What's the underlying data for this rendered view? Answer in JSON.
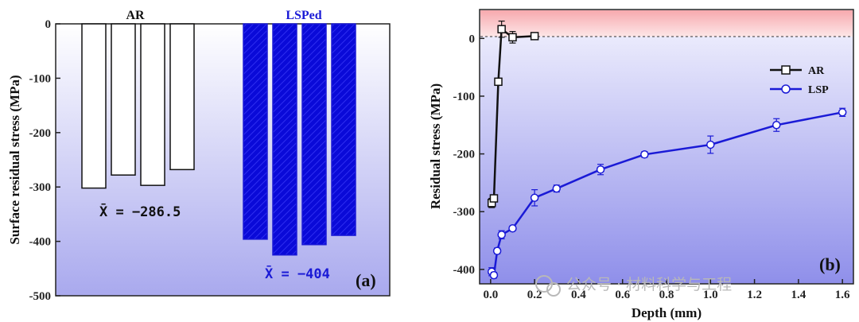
{
  "chart_data": [
    {
      "type": "bar",
      "panel_label": "(a)",
      "ylabel": "Surface residual stress (MPa)",
      "ylim": [
        -500,
        0
      ],
      "yticks": [
        0,
        -100,
        -200,
        -300,
        -400,
        -500
      ],
      "groups": [
        {
          "label": "AR",
          "color": "#111111",
          "fill": "#ffffff",
          "values": [
            -302,
            -278,
            -297,
            -268
          ],
          "mean_label": "X̄ = −286.5",
          "mean_color": "#111111"
        },
        {
          "label": "LSPed",
          "color": "#1a1ad6",
          "fill": "#0a0ad8",
          "values": [
            -396,
            -425,
            -406,
            -389
          ],
          "mean_label": "X̄ = −404",
          "mean_color": "#1a1ad6"
        }
      ]
    },
    {
      "type": "line",
      "panel_label": "(b)",
      "xlabel": "Depth (mm)",
      "ylabel": "Residual stress (MPa)",
      "xlim": [
        -0.05,
        1.65
      ],
      "ylim": [
        -425,
        50
      ],
      "xticks": [
        0.0,
        0.2,
        0.4,
        0.6,
        0.8,
        1.0,
        1.2,
        1.4,
        1.6
      ],
      "xtick_labels": [
        "0.0",
        "0.2",
        "0.4",
        "0.6",
        "0.8",
        "1.0",
        "1.2",
        "1.4",
        "1.6"
      ],
      "yticks": [
        0,
        -100,
        -200,
        -300,
        -400
      ],
      "legend_position": "top-right",
      "series": [
        {
          "name": "AR",
          "color": "#111111",
          "marker": "square",
          "x": [
            0.005,
            0.015,
            0.035,
            0.05,
            0.1,
            0.2
          ],
          "y": [
            -285,
            -277,
            -75,
            16,
            2,
            4
          ],
          "err": [
            8,
            6,
            5,
            14,
            10,
            5
          ]
        },
        {
          "name": "LSP",
          "color": "#1a1ad6",
          "marker": "circle",
          "x": [
            0.005,
            0.015,
            0.03,
            0.05,
            0.1,
            0.2,
            0.3,
            0.5,
            0.7,
            1.0,
            1.3,
            1.6
          ],
          "y": [
            -404,
            -410,
            -368,
            -340,
            -329,
            -276,
            -260,
            -227,
            -201,
            -184,
            -150,
            -128
          ],
          "err": [
            7,
            5,
            5,
            7,
            4,
            14,
            6,
            9,
            5,
            15,
            11,
            7
          ]
        }
      ]
    }
  ],
  "watermark": "公众号 · 材料科学与工程"
}
